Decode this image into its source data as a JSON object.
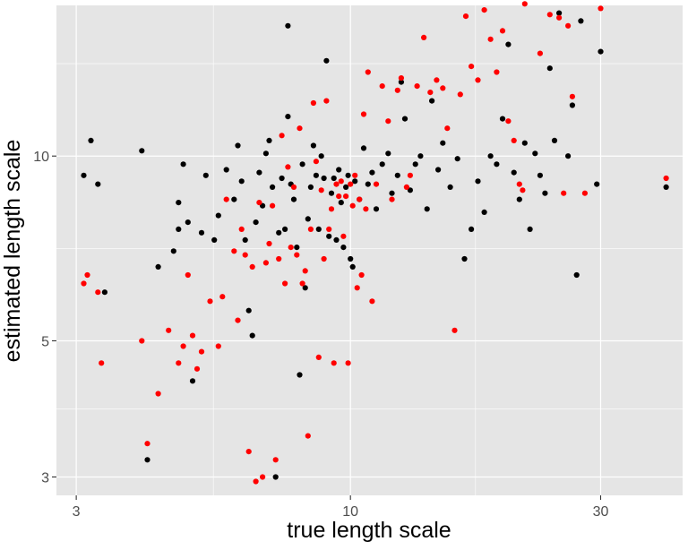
{
  "chart_data": {
    "type": "scatter",
    "xlabel": "true length scale",
    "ylabel": "estimated length scale",
    "x_scale": "log10",
    "y_scale": "log10",
    "xlim": [
      2.75,
      43
    ],
    "ylim": [
      2.8,
      17.6
    ],
    "x_ticks": [
      3,
      10,
      30
    ],
    "x_tick_labels": [
      "3",
      "10",
      "30"
    ],
    "y_ticks": [
      3,
      5,
      10
    ],
    "y_tick_labels": [
      "3",
      "5",
      "10"
    ],
    "grid": true,
    "legend": "none",
    "colors": {
      "panel": "#e5e5e5",
      "grid": "#ffffff",
      "series_1": "#000000",
      "series_2": "#ff0000"
    },
    "series": [
      {
        "color": "#000000",
        "points": [
          [
            3.1,
            9.3
          ],
          [
            3.2,
            10.6
          ],
          [
            3.3,
            9.0
          ],
          [
            3.4,
            6.0
          ],
          [
            4.0,
            10.2
          ],
          [
            4.1,
            3.2
          ],
          [
            4.3,
            6.6
          ],
          [
            4.6,
            7.0
          ],
          [
            4.7,
            7.6
          ],
          [
            4.7,
            8.4
          ],
          [
            4.8,
            9.7
          ],
          [
            4.9,
            7.8
          ],
          [
            5.0,
            4.3
          ],
          [
            5.2,
            7.5
          ],
          [
            5.3,
            9.3
          ],
          [
            5.5,
            7.3
          ],
          [
            5.6,
            8.0
          ],
          [
            5.8,
            9.5
          ],
          [
            6.0,
            8.5
          ],
          [
            6.1,
            10.4
          ],
          [
            6.2,
            9.1
          ],
          [
            6.3,
            7.3
          ],
          [
            6.4,
            5.6
          ],
          [
            6.5,
            5.1
          ],
          [
            6.6,
            7.8
          ],
          [
            6.7,
            9.4
          ],
          [
            6.8,
            8.3
          ],
          [
            6.9,
            10.1
          ],
          [
            7.0,
            10.6
          ],
          [
            7.1,
            8.9
          ],
          [
            7.2,
            3.0
          ],
          [
            7.3,
            7.5
          ],
          [
            7.4,
            9.2
          ],
          [
            7.5,
            7.6
          ],
          [
            7.6,
            11.6
          ],
          [
            7.6,
            16.3
          ],
          [
            7.7,
            9.0
          ],
          [
            7.8,
            8.5
          ],
          [
            7.9,
            7.1
          ],
          [
            8.0,
            4.4
          ],
          [
            8.1,
            9.7
          ],
          [
            8.2,
            6.1
          ],
          [
            8.3,
            7.9
          ],
          [
            8.4,
            8.9
          ],
          [
            8.5,
            10.4
          ],
          [
            8.6,
            9.3
          ],
          [
            8.7,
            7.6
          ],
          [
            8.8,
            10.0
          ],
          [
            8.9,
            9.2
          ],
          [
            9.0,
            14.3
          ],
          [
            9.1,
            7.4
          ],
          [
            9.2,
            8.7
          ],
          [
            9.3,
            9.2
          ],
          [
            9.4,
            7.3
          ],
          [
            9.5,
            9.5
          ],
          [
            9.6,
            8.4
          ],
          [
            9.7,
            7.1
          ],
          [
            9.8,
            8.9
          ],
          [
            9.9,
            9.3
          ],
          [
            10.0,
            6.8
          ],
          [
            10.1,
            6.6
          ],
          [
            10.2,
            9.1
          ],
          [
            10.4,
            8.5
          ],
          [
            10.6,
            10.3
          ],
          [
            10.8,
            9.0
          ],
          [
            11.0,
            9.4
          ],
          [
            11.2,
            8.2
          ],
          [
            11.5,
            9.7
          ],
          [
            11.8,
            10.1
          ],
          [
            12.0,
            8.7
          ],
          [
            12.3,
            9.3
          ],
          [
            12.5,
            13.2
          ],
          [
            12.7,
            11.5
          ],
          [
            13.0,
            8.8
          ],
          [
            13.3,
            9.7
          ],
          [
            13.6,
            10.0
          ],
          [
            14.0,
            8.2
          ],
          [
            14.3,
            12.3
          ],
          [
            14.7,
            9.5
          ],
          [
            15.0,
            10.5
          ],
          [
            15.5,
            8.9
          ],
          [
            16.0,
            9.9
          ],
          [
            16.5,
            6.8
          ],
          [
            17.0,
            7.6
          ],
          [
            17.5,
            9.1
          ],
          [
            18.0,
            8.1
          ],
          [
            18.5,
            10.0
          ],
          [
            19.0,
            9.7
          ],
          [
            19.5,
            11.5
          ],
          [
            20.0,
            15.2
          ],
          [
            20.5,
            9.4
          ],
          [
            21.0,
            8.5
          ],
          [
            21.5,
            10.5
          ],
          [
            22.0,
            7.6
          ],
          [
            22.5,
            10.1
          ],
          [
            23.0,
            9.3
          ],
          [
            23.5,
            8.7
          ],
          [
            24.0,
            13.9
          ],
          [
            24.5,
            10.6
          ],
          [
            25.0,
            17.1
          ],
          [
            26.0,
            10.0
          ],
          [
            26.5,
            12.1
          ],
          [
            27.0,
            6.4
          ],
          [
            27.5,
            16.6
          ],
          [
            29.5,
            9.0
          ],
          [
            30.0,
            14.8
          ],
          [
            40.0,
            8.9
          ]
        ]
      },
      {
        "color": "#ff0000",
        "points": [
          [
            3.1,
            6.2
          ],
          [
            3.15,
            6.4
          ],
          [
            3.3,
            6.0
          ],
          [
            3.35,
            4.6
          ],
          [
            4.0,
            5.0
          ],
          [
            4.1,
            3.4
          ],
          [
            4.3,
            4.1
          ],
          [
            4.5,
            5.2
          ],
          [
            4.7,
            4.6
          ],
          [
            4.8,
            4.9
          ],
          [
            4.9,
            6.4
          ],
          [
            5.0,
            5.1
          ],
          [
            5.1,
            4.5
          ],
          [
            5.2,
            4.8
          ],
          [
            5.4,
            5.8
          ],
          [
            5.6,
            4.9
          ],
          [
            5.7,
            5.9
          ],
          [
            5.8,
            8.5
          ],
          [
            6.0,
            7.0
          ],
          [
            6.1,
            5.4
          ],
          [
            6.2,
            7.6
          ],
          [
            6.3,
            6.9
          ],
          [
            6.4,
            3.3
          ],
          [
            6.5,
            6.6
          ],
          [
            6.6,
            2.95
          ],
          [
            6.7,
            8.4
          ],
          [
            6.8,
            3.0
          ],
          [
            6.9,
            6.7
          ],
          [
            7.0,
            7.2
          ],
          [
            7.1,
            8.3
          ],
          [
            7.2,
            3.2
          ],
          [
            7.3,
            6.8
          ],
          [
            7.4,
            10.8
          ],
          [
            7.5,
            6.2
          ],
          [
            7.6,
            9.6
          ],
          [
            7.7,
            7.1
          ],
          [
            7.8,
            8.9
          ],
          [
            7.9,
            6.9
          ],
          [
            8.0,
            11.1
          ],
          [
            8.1,
            6.2
          ],
          [
            8.2,
            6.5
          ],
          [
            8.3,
            3.5
          ],
          [
            8.4,
            7.6
          ],
          [
            8.5,
            12.2
          ],
          [
            8.6,
            9.8
          ],
          [
            8.7,
            4.7
          ],
          [
            8.8,
            8.8
          ],
          [
            8.9,
            6.8
          ],
          [
            9.0,
            12.3
          ],
          [
            9.1,
            7.6
          ],
          [
            9.2,
            8.2
          ],
          [
            9.3,
            4.6
          ],
          [
            9.4,
            9.0
          ],
          [
            9.5,
            8.6
          ],
          [
            9.6,
            9.1
          ],
          [
            9.7,
            7.4
          ],
          [
            9.8,
            8.6
          ],
          [
            9.9,
            4.6
          ],
          [
            10.0,
            9.0
          ],
          [
            10.1,
            8.3
          ],
          [
            10.2,
            9.3
          ],
          [
            10.3,
            6.1
          ],
          [
            10.4,
            8.5
          ],
          [
            10.5,
            6.4
          ],
          [
            10.6,
            11.7
          ],
          [
            10.7,
            8.2
          ],
          [
            10.8,
            13.7
          ],
          [
            11.0,
            5.8
          ],
          [
            11.2,
            9.0
          ],
          [
            11.5,
            13.0
          ],
          [
            11.8,
            11.4
          ],
          [
            12.0,
            8.5
          ],
          [
            12.3,
            12.8
          ],
          [
            12.5,
            13.4
          ],
          [
            12.8,
            8.9
          ],
          [
            13.0,
            9.3
          ],
          [
            13.4,
            13.0
          ],
          [
            13.8,
            15.6
          ],
          [
            14.2,
            12.7
          ],
          [
            14.6,
            13.3
          ],
          [
            15.0,
            12.9
          ],
          [
            15.3,
            11.1
          ],
          [
            15.8,
            5.2
          ],
          [
            16.2,
            12.6
          ],
          [
            16.6,
            16.9
          ],
          [
            17.0,
            14.0
          ],
          [
            17.5,
            13.3
          ],
          [
            18.0,
            17.3
          ],
          [
            18.5,
            15.5
          ],
          [
            19.0,
            13.7
          ],
          [
            19.5,
            16.0
          ],
          [
            20.0,
            11.4
          ],
          [
            20.5,
            10.6
          ],
          [
            21.0,
            9.0
          ],
          [
            21.3,
            8.8
          ],
          [
            21.5,
            17.7
          ],
          [
            23.0,
            14.7
          ],
          [
            24.0,
            17.0
          ],
          [
            25.0,
            16.8
          ],
          [
            25.5,
            8.7
          ],
          [
            26.0,
            16.3
          ],
          [
            26.5,
            12.5
          ],
          [
            28.0,
            8.7
          ],
          [
            30.0,
            17.4
          ],
          [
            40.0,
            9.2
          ]
        ]
      }
    ]
  }
}
